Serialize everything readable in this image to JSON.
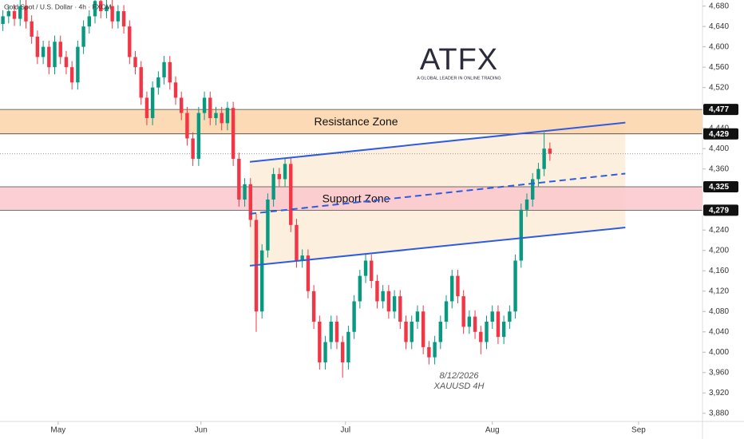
{
  "chart_data": {
    "type": "candlestick",
    "title": "Gold Spot / U.S. Dollar · 4h · FXCM",
    "logo": "ATFX",
    "logo_tagline": "A GLOBAL LEADER IN ONLINE TRADING",
    "annotations": [
      "8/12/2026",
      "XAUUSD 4H"
    ],
    "up_color": "#089981",
    "down_color": "#f23645",
    "open": [
      4645,
      4660,
      4670,
      4655,
      4680,
      4650,
      4620,
      4580,
      4600,
      4560,
      4610,
      4580,
      4560,
      4530,
      4600,
      4640,
      4660,
      4690,
      4670,
      4680,
      4650,
      4670,
      4640,
      4580,
      4560,
      4500,
      4460,
      4520,
      4540,
      4570,
      4530,
      4500,
      4470,
      4420,
      4380,
      4470,
      4500,
      4460,
      4470,
      4450,
      4480,
      4380,
      4300,
      4330,
      4260,
      4080,
      4200,
      4300,
      4350,
      4340,
      4370,
      4250,
      4180,
      4190,
      4120,
      4060,
      3980,
      4020,
      4060,
      4020,
      3980,
      4040,
      4100,
      4150,
      4180,
      4140,
      4100,
      4120,
      4080,
      4110,
      4060,
      4020,
      4060,
      4080,
      4010,
      3990,
      4020,
      4060,
      4100,
      4150,
      4110,
      4050,
      4070,
      4040,
      4020,
      4060,
      4080,
      4030,
      4060,
      4080,
      4180,
      4280,
      4300,
      4340,
      4360,
      4400
    ],
    "high": [
      4672,
      4682,
      4682,
      4692,
      4692,
      4662,
      4632,
      4612,
      4612,
      4622,
      4622,
      4592,
      4572,
      4612,
      4652,
      4672,
      4702,
      4702,
      4692,
      4692,
      4682,
      4682,
      4652,
      4592,
      4572,
      4512,
      4532,
      4552,
      4582,
      4582,
      4542,
      4512,
      4482,
      4432,
      4482,
      4512,
      4512,
      4482,
      4482,
      4492,
      4492,
      4392,
      4342,
      4342,
      4272,
      4212,
      4312,
      4362,
      4362,
      4382,
      4382,
      4262,
      4202,
      4202,
      4132,
      4072,
      4032,
      4072,
      4072,
      4032,
      4052,
      4112,
      4162,
      4192,
      4192,
      4152,
      4132,
      4132,
      4122,
      4122,
      4072,
      4072,
      4092,
      4092,
      4022,
      4032,
      4072,
      4112,
      4162,
      4162,
      4122,
      4082,
      4082,
      4052,
      4072,
      4092,
      4092,
      4072,
      4092,
      4192,
      4292,
      4312,
      4352,
      4372,
      4432,
      4412
    ],
    "low": [
      4631,
      4646,
      4641,
      4641,
      4636,
      4606,
      4566,
      4566,
      4546,
      4546,
      4566,
      4546,
      4516,
      4516,
      4586,
      4626,
      4646,
      4656,
      4656,
      4636,
      4636,
      4626,
      4566,
      4546,
      4486,
      4446,
      4446,
      4506,
      4526,
      4516,
      4486,
      4456,
      4406,
      4366,
      4366,
      4456,
      4446,
      4446,
      4436,
      4436,
      4366,
      4286,
      4286,
      4246,
      4040,
      4066,
      4186,
      4286,
      4326,
      4326,
      4236,
      4166,
      4166,
      4106,
      4046,
      3966,
      3966,
      4006,
      4006,
      3950,
      3966,
      4026,
      4086,
      4136,
      4126,
      4086,
      4086,
      4066,
      4066,
      4046,
      4006,
      4006,
      4046,
      3996,
      3976,
      3976,
      4006,
      4046,
      4086,
      4096,
      4036,
      4036,
      4026,
      3996,
      4006,
      4046,
      4016,
      4016,
      4046,
      4066,
      4166,
      4266,
      4286,
      4326,
      4346,
      4376
    ],
    "close": [
      4660,
      4670,
      4655,
      4680,
      4650,
      4620,
      4580,
      4600,
      4560,
      4610,
      4580,
      4560,
      4530,
      4600,
      4640,
      4660,
      4690,
      4670,
      4680,
      4650,
      4670,
      4640,
      4580,
      4560,
      4500,
      4460,
      4520,
      4540,
      4570,
      4530,
      4500,
      4470,
      4420,
      4380,
      4470,
      4500,
      4460,
      4470,
      4450,
      4480,
      4380,
      4300,
      4330,
      4260,
      4080,
      4200,
      4300,
      4350,
      4340,
      4370,
      4250,
      4180,
      4190,
      4120,
      4060,
      3980,
      4020,
      4060,
      4020,
      3980,
      4040,
      4100,
      4150,
      4180,
      4140,
      4100,
      4120,
      4080,
      4110,
      4060,
      4020,
      4060,
      4080,
      4010,
      3990,
      4020,
      4060,
      4100,
      4150,
      4110,
      4050,
      4070,
      4040,
      4020,
      4060,
      4080,
      4030,
      4060,
      4080,
      4180,
      4280,
      4300,
      4340,
      4360,
      4400,
      4390
    ],
    "xlim": [
      0,
      122
    ],
    "xticks": [
      {
        "value": 10.1,
        "label": "May"
      },
      {
        "value": 34.9,
        "label": "Jun"
      },
      {
        "value": 60,
        "label": "Jul"
      },
      {
        "value": 85.5,
        "label": "Aug"
      },
      {
        "value": 110.9,
        "label": "Sep"
      }
    ],
    "ylim": [
      3864,
      4692
    ],
    "yticks": [
      {
        "value": 4680,
        "label": "4,680"
      },
      {
        "value": 4640,
        "label": "4,640"
      },
      {
        "value": 4600,
        "label": "4,600"
      },
      {
        "value": 4560,
        "label": "4,560"
      },
      {
        "value": 4520,
        "label": "4,520"
      },
      {
        "value": 4440,
        "label": "4,440"
      },
      {
        "value": 4400,
        "label": "4,400"
      },
      {
        "value": 4360,
        "label": "4,360"
      },
      {
        "value": 4240,
        "label": "4,240"
      },
      {
        "value": 4200,
        "label": "4,200"
      },
      {
        "value": 4160,
        "label": "4,160"
      },
      {
        "value": 4120,
        "label": "4,120"
      },
      {
        "value": 4080,
        "label": "4,080"
      },
      {
        "value": 4040,
        "label": "4,040"
      },
      {
        "value": 4000,
        "label": "4,000"
      },
      {
        "value": 3960,
        "label": "3,960"
      },
      {
        "value": 3920,
        "label": "3,920"
      },
      {
        "value": 3880,
        "label": "3,880"
      }
    ],
    "zones": [
      {
        "name": "Resistance Zone",
        "from": 4429,
        "to": 4477,
        "color": "#fcd3a8"
      },
      {
        "name": "Support Zone",
        "from": 4279,
        "to": 4325,
        "color": "#fbc7cc"
      }
    ],
    "levels": [
      {
        "value": 4477,
        "label": "4,477"
      },
      {
        "value": 4429,
        "label": "4,429"
      },
      {
        "value": 4325,
        "label": "4,325"
      },
      {
        "value": 4279,
        "label": "4,279"
      }
    ],
    "channel": {
      "fill": "#fdebd5",
      "color": "#2f5be0",
      "upper": {
        "x": [
          43.4,
          108.6
        ],
        "y": [
          4374,
          4451
        ]
      },
      "middle": {
        "x": [
          43.4,
          108.6
        ],
        "y": [
          4272,
          4351
        ]
      },
      "lower": {
        "x": [
          43.4,
          108.6
        ],
        "y": [
          4170,
          4245
        ]
      }
    },
    "last_price": 4390
  }
}
